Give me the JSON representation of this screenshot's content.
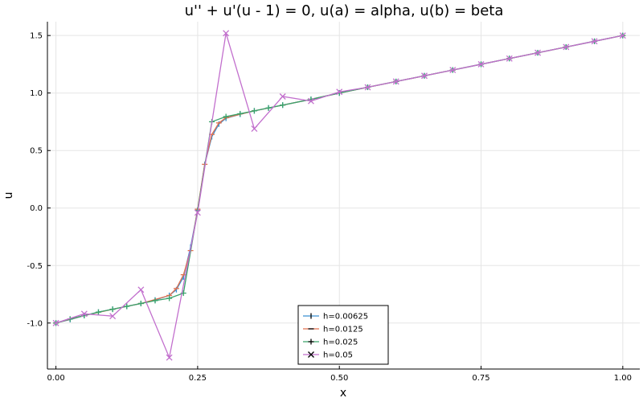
{
  "chart_data": {
    "type": "line",
    "title": "u'' + u'(u - 1) = 0, u(a) = alpha, u(b) = beta",
    "xlabel": "x",
    "ylabel": "u",
    "xlim": [
      -0.015,
      1.03
    ],
    "ylim": [
      -1.4,
      1.62
    ],
    "xticks": [
      0.0,
      0.25,
      0.5,
      0.75,
      1.0
    ],
    "xtick_labels": [
      "0.00",
      "0.25",
      "0.50",
      "0.75",
      "1.00"
    ],
    "yticks": [
      -1.0,
      -0.5,
      0.0,
      0.5,
      1.0,
      1.5
    ],
    "ytick_labels": [
      "-1.0",
      "-0.5",
      "0.0",
      "0.5",
      "1.0",
      "1.5"
    ],
    "grid": true,
    "legend_position": "bottom-center",
    "series": [
      {
        "name": "h=0.00625",
        "color": "#3a8fd0",
        "marker": "vline",
        "x": [
          0.0,
          0.025,
          0.05,
          0.075,
          0.1,
          0.125,
          0.15,
          0.175,
          0.2,
          0.2125,
          0.225,
          0.2375,
          0.25,
          0.2625,
          0.275,
          0.2875,
          0.3,
          0.325,
          0.35,
          0.375,
          0.4,
          0.45,
          0.5,
          0.55,
          0.6,
          0.65,
          0.7,
          0.75,
          0.8,
          0.85,
          0.9,
          0.95,
          1.0
        ],
        "y": [
          -1.0,
          -0.97,
          -0.935,
          -0.905,
          -0.88,
          -0.855,
          -0.83,
          -0.8,
          -0.76,
          -0.71,
          -0.6,
          -0.34,
          -0.02,
          0.38,
          0.62,
          0.73,
          0.78,
          0.815,
          0.845,
          0.87,
          0.895,
          0.945,
          1.0,
          1.05,
          1.1,
          1.15,
          1.2,
          1.25,
          1.3,
          1.35,
          1.4,
          1.45,
          1.5
        ]
      },
      {
        "name": "h=0.0125",
        "color": "#e2704f",
        "marker": "hline",
        "x": [
          0.0,
          0.05,
          0.1,
          0.15,
          0.2,
          0.2125,
          0.225,
          0.2375,
          0.25,
          0.2625,
          0.275,
          0.2875,
          0.3,
          0.35,
          0.4,
          0.45,
          0.5,
          0.6,
          0.7,
          0.8,
          0.9,
          1.0
        ],
        "y": [
          -1.0,
          -0.935,
          -0.88,
          -0.83,
          -0.76,
          -0.7,
          -0.58,
          -0.37,
          -0.01,
          0.38,
          0.64,
          0.74,
          0.785,
          0.845,
          0.895,
          0.945,
          1.0,
          1.1,
          1.2,
          1.3,
          1.4,
          1.5
        ]
      },
      {
        "name": "h=0.025",
        "color": "#3aa36b",
        "marker": "plus",
        "x": [
          0.0,
          0.025,
          0.05,
          0.075,
          0.1,
          0.125,
          0.15,
          0.175,
          0.2,
          0.225,
          0.25,
          0.275,
          0.3,
          0.325,
          0.35,
          0.375,
          0.4,
          0.45,
          0.5,
          0.55,
          0.6,
          0.65,
          0.7,
          0.75,
          0.8,
          0.85,
          0.9,
          0.95,
          1.0
        ],
        "y": [
          -1.0,
          -0.965,
          -0.935,
          -0.905,
          -0.88,
          -0.855,
          -0.83,
          -0.805,
          -0.785,
          -0.74,
          -0.02,
          0.75,
          0.795,
          0.82,
          0.845,
          0.87,
          0.895,
          0.945,
          1.0,
          1.05,
          1.1,
          1.15,
          1.2,
          1.25,
          1.3,
          1.35,
          1.4,
          1.45,
          1.5
        ]
      },
      {
        "name": "h=0.05",
        "color": "#c26fcd",
        "marker": "x",
        "x": [
          0.0,
          0.05,
          0.1,
          0.15,
          0.2,
          0.25,
          0.3,
          0.35,
          0.4,
          0.45,
          0.5,
          0.55,
          0.6,
          0.65,
          0.7,
          0.75,
          0.8,
          0.85,
          0.9,
          0.95,
          1.0
        ],
        "y": [
          -1.0,
          -0.92,
          -0.94,
          -0.71,
          -1.3,
          -0.04,
          1.52,
          0.69,
          0.97,
          0.93,
          1.01,
          1.05,
          1.1,
          1.15,
          1.2,
          1.25,
          1.3,
          1.35,
          1.4,
          1.45,
          1.5
        ]
      }
    ]
  }
}
